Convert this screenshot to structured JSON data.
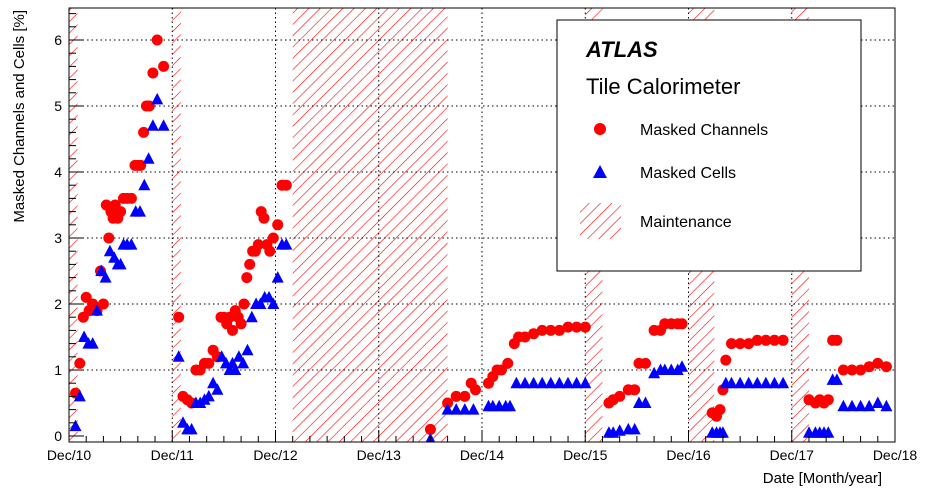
{
  "chart_data": {
    "type": "scatter",
    "title": "",
    "xlabel": "Date [Month/year]",
    "ylabel": "Masked Channels and Cells [%]",
    "x_ticks": [
      "Dec/10",
      "Dec/11",
      "Dec/12",
      "Dec/13",
      "Dec/14",
      "Dec/15",
      "Dec/16",
      "Dec/17",
      "Dec/18"
    ],
    "xlim": [
      "2010-12",
      "2018-12"
    ],
    "ylim": [
      0,
      6.5
    ],
    "y_ticks": [
      0,
      1,
      2,
      3,
      4,
      5,
      6
    ],
    "grid": true,
    "legend_position": "top-right",
    "legend": {
      "brand": "ATLAS",
      "subtitle": "Tile Calorimeter",
      "entries": [
        "Masked Channels",
        "Masked Cells",
        "Maintenance"
      ]
    },
    "maintenance_periods": [
      [
        "2010-12",
        "2011-01"
      ],
      [
        "2011-12",
        "2012-01"
      ],
      [
        "2013-02",
        "2014-06"
      ],
      [
        "2014-06",
        "2014-08"
      ],
      [
        "2015-12",
        "2016-02"
      ],
      [
        "2016-12",
        "2017-03"
      ],
      [
        "2017-12",
        "2018-02"
      ]
    ],
    "series": [
      {
        "name": "Masked Channels",
        "color": "#ff0000",
        "marker": "circle",
        "points": [
          [
            "2011-01",
            0.65
          ],
          [
            "2011-01",
            1.1
          ],
          [
            "2011-02",
            1.8
          ],
          [
            "2011-02",
            2.1
          ],
          [
            "2011-02",
            1.9
          ],
          [
            "2011-03",
            2.0
          ],
          [
            "2011-03",
            1.9
          ],
          [
            "2011-04",
            2.5
          ],
          [
            "2011-04",
            2.0
          ],
          [
            "2011-04",
            3.5
          ],
          [
            "2011-05",
            3.0
          ],
          [
            "2011-05",
            3.4
          ],
          [
            "2011-05",
            3.3
          ],
          [
            "2011-05",
            3.5
          ],
          [
            "2011-06",
            3.3
          ],
          [
            "2011-06",
            3.4
          ],
          [
            "2011-06",
            3.6
          ],
          [
            "2011-07",
            3.6
          ],
          [
            "2011-07",
            3.6
          ],
          [
            "2011-08",
            4.1
          ],
          [
            "2011-08",
            4.1
          ],
          [
            "2011-08",
            4.1
          ],
          [
            "2011-09",
            4.6
          ],
          [
            "2011-09",
            5.0
          ],
          [
            "2011-09",
            5.0
          ],
          [
            "2011-10",
            5.5
          ],
          [
            "2011-10",
            6.0
          ],
          [
            "2011-11",
            5.6
          ],
          [
            "2012-01",
            1.8
          ],
          [
            "2012-01",
            0.6
          ],
          [
            "2012-02",
            0.55
          ],
          [
            "2012-02",
            0.5
          ],
          [
            "2012-03",
            1.0
          ],
          [
            "2012-03",
            1.0
          ],
          [
            "2012-04",
            1.1
          ],
          [
            "2012-04",
            1.1
          ],
          [
            "2012-05",
            1.3
          ],
          [
            "2012-05",
            1.2
          ],
          [
            "2012-06",
            1.8
          ],
          [
            "2012-06",
            1.8
          ],
          [
            "2012-06",
            1.7
          ],
          [
            "2012-07",
            1.8
          ],
          [
            "2012-07",
            1.6
          ],
          [
            "2012-07",
            1.9
          ],
          [
            "2012-08",
            1.8
          ],
          [
            "2012-08",
            1.7
          ],
          [
            "2012-08",
            2.0
          ],
          [
            "2012-09",
            2.4
          ],
          [
            "2012-09",
            2.6
          ],
          [
            "2012-09",
            2.8
          ],
          [
            "2012-10",
            2.8
          ],
          [
            "2012-10",
            2.9
          ],
          [
            "2012-10",
            3.4
          ],
          [
            "2012-11",
            3.3
          ],
          [
            "2012-11",
            2.9
          ],
          [
            "2012-11",
            2.8
          ],
          [
            "2012-12",
            3.0
          ],
          [
            "2012-12",
            3.2
          ],
          [
            "2013-01",
            3.8
          ],
          [
            "2013-01",
            3.8
          ],
          [
            "2014-06",
            0.1
          ],
          [
            "2014-08",
            0.5
          ],
          [
            "2014-09",
            0.6
          ],
          [
            "2014-10",
            0.6
          ],
          [
            "2014-11",
            0.8
          ],
          [
            "2014-11",
            0.7
          ],
          [
            "2015-01",
            0.8
          ],
          [
            "2015-01",
            0.9
          ],
          [
            "2015-02",
            1.0
          ],
          [
            "2015-02",
            1.0
          ],
          [
            "2015-03",
            1.1
          ],
          [
            "2015-04",
            1.4
          ],
          [
            "2015-04",
            1.5
          ],
          [
            "2015-05",
            1.5
          ],
          [
            "2015-06",
            1.55
          ],
          [
            "2015-07",
            1.6
          ],
          [
            "2015-08",
            1.6
          ],
          [
            "2015-09",
            1.6
          ],
          [
            "2015-10",
            1.65
          ],
          [
            "2015-11",
            1.65
          ],
          [
            "2015-12",
            1.65
          ],
          [
            "2016-03",
            0.5
          ],
          [
            "2016-03",
            0.55
          ],
          [
            "2016-04",
            0.6
          ],
          [
            "2016-05",
            0.7
          ],
          [
            "2016-06",
            0.7
          ],
          [
            "2016-06",
            1.1
          ],
          [
            "2016-07",
            1.1
          ],
          [
            "2016-08",
            1.6
          ],
          [
            "2016-09",
            1.6
          ],
          [
            "2016-09",
            1.7
          ],
          [
            "2016-10",
            1.7
          ],
          [
            "2016-11",
            1.7
          ],
          [
            "2016-11",
            1.7
          ],
          [
            "2017-03",
            0.35
          ],
          [
            "2017-03",
            0.3
          ],
          [
            "2017-04",
            0.4
          ],
          [
            "2017-04",
            0.7
          ],
          [
            "2017-04",
            1.15
          ],
          [
            "2017-05",
            1.4
          ],
          [
            "2017-06",
            1.4
          ],
          [
            "2017-07",
            1.4
          ],
          [
            "2017-08",
            1.45
          ],
          [
            "2017-09",
            1.45
          ],
          [
            "2017-10",
            1.45
          ],
          [
            "2017-11",
            1.45
          ],
          [
            "2018-02",
            0.55
          ],
          [
            "2018-03",
            0.5
          ],
          [
            "2018-03",
            0.55
          ],
          [
            "2018-04",
            0.5
          ],
          [
            "2018-04",
            0.55
          ],
          [
            "2018-05",
            1.45
          ],
          [
            "2018-05",
            1.45
          ],
          [
            "2018-06",
            1.0
          ],
          [
            "2018-07",
            1.0
          ],
          [
            "2018-08",
            1.0
          ],
          [
            "2018-09",
            1.05
          ],
          [
            "2018-10",
            1.1
          ],
          [
            "2018-11",
            1.05
          ]
        ]
      },
      {
        "name": "Masked Cells",
        "color": "#0000ff",
        "marker": "triangle",
        "points": [
          [
            "2011-01",
            0.15
          ],
          [
            "2011-01",
            0.6
          ],
          [
            "2011-02",
            1.5
          ],
          [
            "2011-02",
            1.4
          ],
          [
            "2011-03",
            1.4
          ],
          [
            "2011-03",
            1.9
          ],
          [
            "2011-04",
            2.5
          ],
          [
            "2011-04",
            2.4
          ],
          [
            "2011-05",
            2.8
          ],
          [
            "2011-05",
            2.7
          ],
          [
            "2011-06",
            2.6
          ],
          [
            "2011-06",
            2.6
          ],
          [
            "2011-06",
            2.9
          ],
          [
            "2011-07",
            2.9
          ],
          [
            "2011-07",
            2.9
          ],
          [
            "2011-08",
            3.4
          ],
          [
            "2011-08",
            3.4
          ],
          [
            "2011-09",
            3.8
          ],
          [
            "2011-09",
            4.2
          ],
          [
            "2011-10",
            4.7
          ],
          [
            "2011-10",
            5.1
          ],
          [
            "2011-11",
            4.7
          ],
          [
            "2012-01",
            1.2
          ],
          [
            "2012-01",
            0.2
          ],
          [
            "2012-02",
            0.1
          ],
          [
            "2012-02",
            0.1
          ],
          [
            "2012-03",
            0.5
          ],
          [
            "2012-03",
            0.5
          ],
          [
            "2012-04",
            0.55
          ],
          [
            "2012-04",
            0.6
          ],
          [
            "2012-05",
            0.8
          ],
          [
            "2012-05",
            0.7
          ],
          [
            "2012-06",
            1.2
          ],
          [
            "2012-06",
            1.1
          ],
          [
            "2012-07",
            1.0
          ],
          [
            "2012-07",
            1.1
          ],
          [
            "2012-07",
            1.0
          ],
          [
            "2012-08",
            1.2
          ],
          [
            "2012-08",
            1.1
          ],
          [
            "2012-09",
            1.3
          ],
          [
            "2012-09",
            1.8
          ],
          [
            "2012-10",
            2.0
          ],
          [
            "2012-10",
            2.0
          ],
          [
            "2012-11",
            2.1
          ],
          [
            "2012-11",
            2.1
          ],
          [
            "2012-12",
            2.0
          ],
          [
            "2012-12",
            2.4
          ],
          [
            "2013-01",
            2.9
          ],
          [
            "2013-01",
            2.9
          ],
          [
            "2014-06",
            -0.05
          ],
          [
            "2014-08",
            0.4
          ],
          [
            "2014-09",
            0.4
          ],
          [
            "2014-10",
            0.4
          ],
          [
            "2014-11",
            0.4
          ],
          [
            "2015-01",
            0.45
          ],
          [
            "2015-01",
            0.45
          ],
          [
            "2015-02",
            0.45
          ],
          [
            "2015-03",
            0.45
          ],
          [
            "2015-03",
            0.45
          ],
          [
            "2015-04",
            0.8
          ],
          [
            "2015-05",
            0.8
          ],
          [
            "2015-06",
            0.8
          ],
          [
            "2015-07",
            0.8
          ],
          [
            "2015-08",
            0.8
          ],
          [
            "2015-09",
            0.8
          ],
          [
            "2015-10",
            0.8
          ],
          [
            "2015-11",
            0.8
          ],
          [
            "2015-12",
            0.8
          ],
          [
            "2016-03",
            0.05
          ],
          [
            "2016-03",
            0.05
          ],
          [
            "2016-04",
            0.08
          ],
          [
            "2016-05",
            0.1
          ],
          [
            "2016-06",
            0.1
          ],
          [
            "2016-06",
            0.5
          ],
          [
            "2016-07",
            0.5
          ],
          [
            "2016-08",
            0.95
          ],
          [
            "2016-09",
            1.0
          ],
          [
            "2016-09",
            1.0
          ],
          [
            "2016-10",
            1.0
          ],
          [
            "2016-11",
            1.0
          ],
          [
            "2016-11",
            1.05
          ],
          [
            "2017-03",
            0.05
          ],
          [
            "2017-03",
            0.05
          ],
          [
            "2017-04",
            0.05
          ],
          [
            "2017-04",
            0.05
          ],
          [
            "2017-04",
            0.8
          ],
          [
            "2017-05",
            0.8
          ],
          [
            "2017-06",
            0.8
          ],
          [
            "2017-07",
            0.8
          ],
          [
            "2017-08",
            0.8
          ],
          [
            "2017-09",
            0.8
          ],
          [
            "2017-10",
            0.8
          ],
          [
            "2017-11",
            0.8
          ],
          [
            "2018-02",
            0.05
          ],
          [
            "2018-03",
            0.05
          ],
          [
            "2018-03",
            0.05
          ],
          [
            "2018-04",
            0.05
          ],
          [
            "2018-04",
            0.05
          ],
          [
            "2018-05",
            0.85
          ],
          [
            "2018-05",
            0.85
          ],
          [
            "2018-06",
            0.45
          ],
          [
            "2018-07",
            0.45
          ],
          [
            "2018-08",
            0.45
          ],
          [
            "2018-09",
            0.45
          ],
          [
            "2018-10",
            0.5
          ],
          [
            "2018-11",
            0.45
          ]
        ]
      }
    ]
  }
}
